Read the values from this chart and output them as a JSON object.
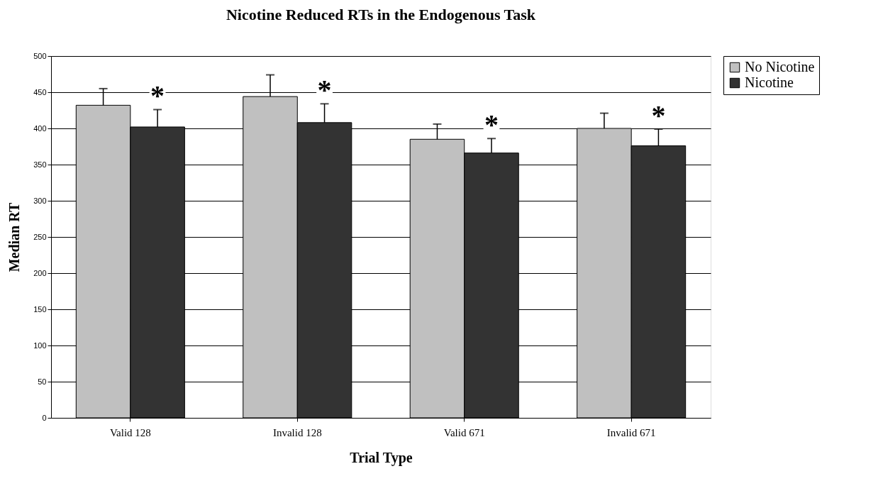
{
  "chart_data": {
    "type": "bar",
    "title": "Nicotine Reduced RTs in the Endogenous Task",
    "xlabel": "Trial Type",
    "ylabel": "Median RT",
    "categories": [
      "Valid 128",
      "Invalid 128",
      "Valid 671",
      "Invalid 671"
    ],
    "series": [
      {
        "name": "No Nicotine",
        "color": "#c0c0c0",
        "values": [
          432,
          444,
          385,
          400
        ],
        "errors": [
          [
            432,
            455
          ],
          [
            444,
            474
          ],
          [
            385,
            406
          ],
          [
            400,
            421
          ]
        ]
      },
      {
        "name": "Nicotine",
        "color": "#333333",
        "values": [
          402,
          408,
          366,
          376
        ],
        "errors": [
          [
            402,
            426
          ],
          [
            408,
            434
          ],
          [
            366,
            386
          ],
          [
            376,
            399
          ]
        ]
      }
    ],
    "annotations": [
      "*",
      "*",
      "*",
      "*"
    ],
    "ylim": [
      0,
      500
    ],
    "yticks": [
      0,
      50,
      100,
      150,
      200,
      250,
      300,
      350,
      400,
      450,
      500
    ],
    "grid": "y",
    "legend": "right"
  }
}
